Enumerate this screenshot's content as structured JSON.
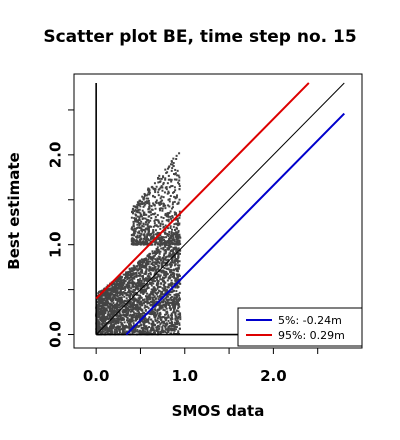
{
  "chart_data": {
    "type": "scatter",
    "title": "Scatter plot BE, time step no. 15",
    "xlabel": "SMOS data",
    "ylabel": "Best estimate",
    "xlim": [
      -0.25,
      3.0
    ],
    "ylim": [
      -0.15,
      2.9
    ],
    "x_ticks": [
      0.0,
      0.5,
      1.0,
      1.5,
      2.0,
      2.5
    ],
    "x_tick_labels": [
      "0.0",
      "1.0",
      "2.0"
    ],
    "y_ticks": [
      0.0,
      0.5,
      1.0,
      1.5,
      2.0,
      2.5
    ],
    "y_tick_labels": [
      "0.0",
      "1.0",
      "2.0"
    ],
    "grid": false,
    "point_color": "#444444",
    "points_cloud": {
      "x_range": [
        0.0,
        0.95
      ],
      "y_range": [
        0.0,
        2.05
      ]
    },
    "reference_lines": [
      {
        "name": "",
        "intercept": 0.0,
        "slope": 1.0,
        "x_range": [
          0.0,
          2.8
        ],
        "color": "#000000"
      },
      {
        "name": "5%:",
        "value": "-0.24m",
        "intercept": -0.34,
        "slope": 1.0,
        "x_range": [
          0.34,
          2.8
        ],
        "color": "#0000cc"
      },
      {
        "name": "95%:",
        "value": " 0.29m",
        "intercept": 0.4,
        "slope": 1.0,
        "x_range": [
          0.0,
          2.4
        ],
        "color": "#dd0000"
      }
    ],
    "legend": {
      "placement": "bottom-right",
      "entries": [
        {
          "label": "5%: -0.24m",
          "color": "#0000cc"
        },
        {
          "label": "95%:  0.29m",
          "color": "#dd0000"
        }
      ]
    }
  }
}
